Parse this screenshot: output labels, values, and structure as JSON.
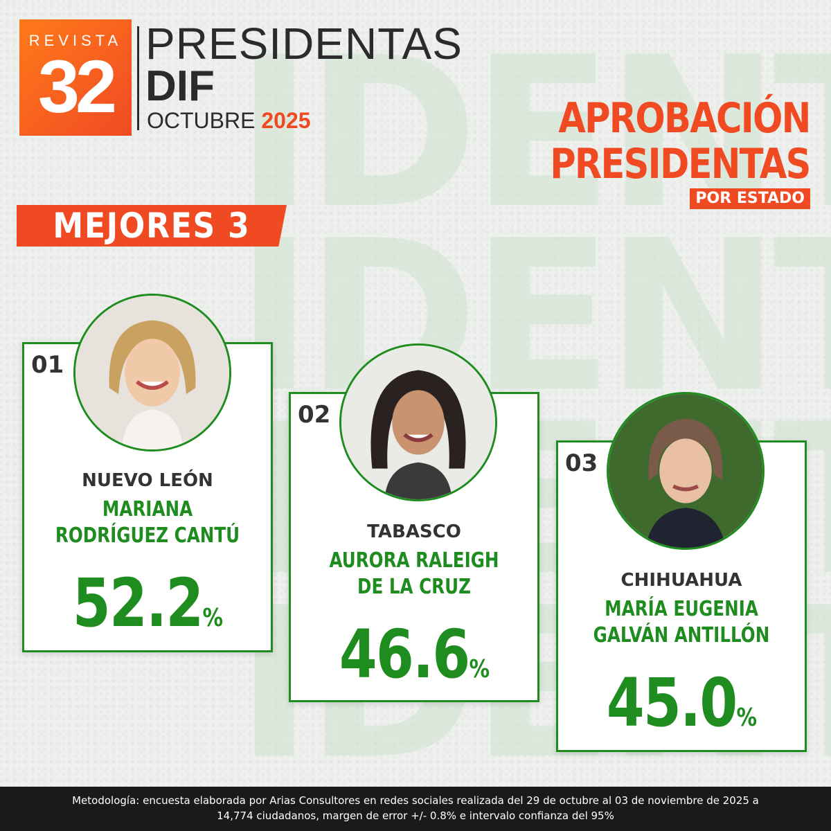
{
  "brand": {
    "logo_top": "REVISTA",
    "logo_number": "32",
    "line1": "PRESIDENTAS",
    "line2": "DIF",
    "month": "OCTUBRE",
    "year": "2025",
    "accent_color": "#f04a23",
    "green_color": "#1e8c1e"
  },
  "headline": {
    "line1": "APROBACIÓN",
    "line2": "PRESIDENTAS",
    "tag": "POR ESTADO"
  },
  "section_label": "MEJORES 3",
  "cards": [
    {
      "rank": "01",
      "state": "NUEVO LEÓN",
      "name": "MARIANA RODRÍGUEZ CANTÚ",
      "value": "52.2",
      "unit": "%",
      "photo_icon": "portrait-photo-1"
    },
    {
      "rank": "02",
      "state": "TABASCO",
      "name": "AURORA RALEIGH DE LA CRUZ",
      "value": "46.6",
      "unit": "%",
      "photo_icon": "portrait-photo-2"
    },
    {
      "rank": "03",
      "state": "CHIHUAHUA",
      "name": "MARÍA EUGENIA GALVÁN ANTILLÓN",
      "value": "45.0",
      "unit": "%",
      "photo_icon": "portrait-photo-3"
    }
  ],
  "footer": {
    "line1": "Metodología: encuesta elaborada por Arias Consultores en redes sociales realizada del 29 de octubre al 03 de noviembre de 2025 a",
    "line2": "14,774 ciudadanos, margen de error +/- 0.8% e intervalo confianza del 95%"
  }
}
